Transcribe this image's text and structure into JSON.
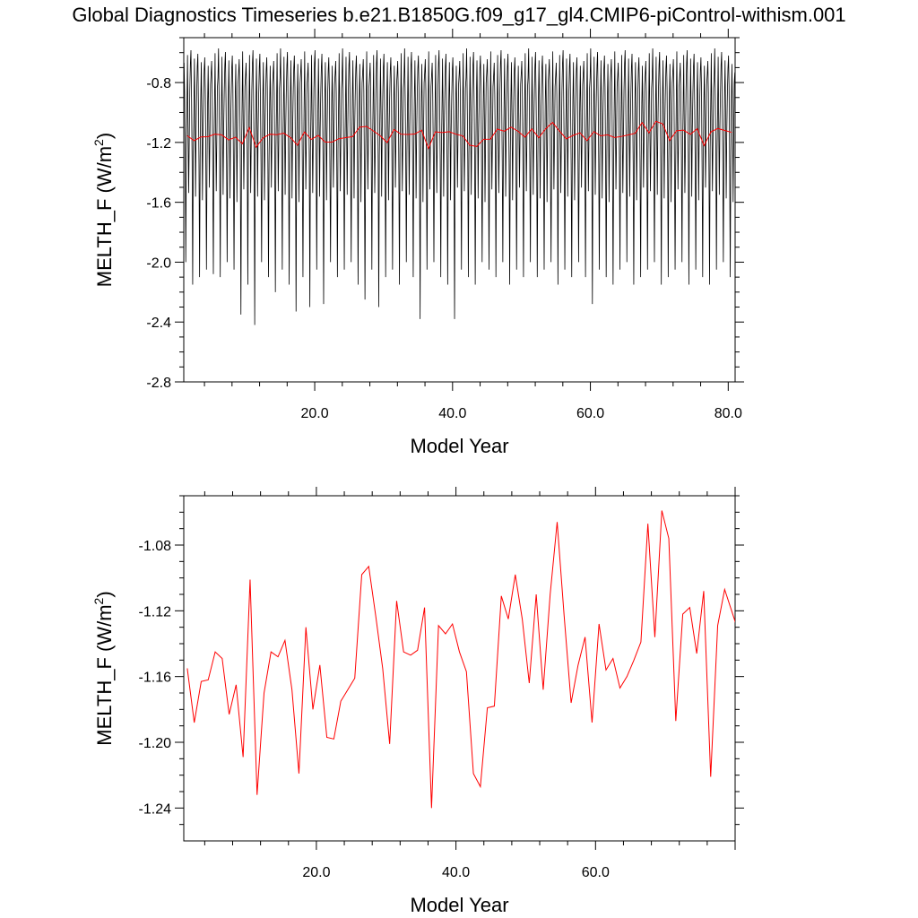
{
  "title": "Global Diagnostics Timeseries b.e21.B1850G.f09_g17_gl4.CMIP6-piControl-withism.001",
  "colors": {
    "monthly": "#000000",
    "annual": "#ff0000"
  },
  "chart_data": [
    {
      "type": "line",
      "xlabel": "Model Year",
      "ylabel": {
        "main": "MELTH_F (W/m",
        "sup": "2",
        "end": ")"
      },
      "xlim": [
        1,
        81
      ],
      "ylim": [
        -2.8,
        -0.5
      ],
      "xticks": [
        20,
        40,
        60,
        80
      ],
      "xtick_labels": [
        "20.0",
        "40.0",
        "60.0",
        "80.0"
      ],
      "yticks": [
        -0.8,
        -1.2,
        -1.6,
        -2.0,
        -2.4,
        -2.8
      ],
      "ytick_labels": [
        "-0.8",
        "-1.2",
        "-1.6",
        "-2.0",
        "-2.4",
        "-2.8"
      ],
      "grid": false,
      "monthly_pattern": [
        -0.62,
        -0.88,
        -1.35,
        -2.05,
        -1.3,
        -0.95,
        -0.64,
        -1.05,
        -1.55,
        -1.15,
        -0.85,
        -0.72
      ],
      "annual_minima": [
        -2.0,
        -2.15,
        -2.1,
        -2.05,
        -2.08,
        -2.1,
        -2.0,
        -2.05,
        -2.35,
        -2.15,
        -2.42,
        -2.0,
        -2.1,
        -2.2,
        -2.05,
        -2.15,
        -2.33,
        -2.1,
        -2.3,
        -2.05,
        -2.28,
        -2.0,
        -2.1,
        -2.05,
        -2.0,
        -2.15,
        -2.25,
        -2.05,
        -2.3,
        -2.1,
        -2.05,
        -2.15,
        -2.0,
        -2.1,
        -2.38,
        -2.05,
        -2.0,
        -2.1,
        -2.15,
        -2.38,
        -2.05,
        -2.1,
        -2.15,
        -2.0,
        -2.05,
        -2.1,
        -2.0,
        -2.15,
        -2.05,
        -2.1,
        -2.0,
        -2.1,
        -2.05,
        -2.0,
        -2.15,
        -2.05,
        -2.1,
        -2.0,
        -2.1,
        -2.28,
        -2.05,
        -2.1,
        -2.15,
        -2.05,
        -2.0,
        -2.15,
        -2.1,
        -2.05,
        -2.0,
        -2.15,
        -2.1,
        -2.05,
        -2.0,
        -2.15,
        -2.05,
        -2.1,
        -2.15,
        -2.05,
        -2.0,
        -2.1
      ],
      "series": [
        {
          "kind": "monthly"
        },
        {
          "kind": "annual",
          "ref": "annual"
        }
      ]
    },
    {
      "type": "line",
      "xlabel": "Model Year",
      "ylabel": {
        "main": "MELTH_F (W/m",
        "sup": "2",
        "end": ")"
      },
      "xlim": [
        1,
        80
      ],
      "ylim": [
        -1.26,
        -1.05
      ],
      "xticks": [
        20,
        40,
        60
      ],
      "xtick_labels": [
        "20.0",
        "40.0",
        "60.0"
      ],
      "yticks": [
        -1.08,
        -1.12,
        -1.16,
        -1.2,
        -1.24
      ],
      "ytick_labels": [
        "-1.08",
        "-1.12",
        "-1.16",
        "-1.20",
        "-1.24"
      ],
      "grid": false,
      "series": [
        {
          "kind": "annual",
          "ref": "annual"
        }
      ]
    }
  ],
  "annual": {
    "x": [
      1,
      2,
      3,
      4,
      5,
      6,
      7,
      8,
      9,
      10,
      11,
      12,
      13,
      14,
      15,
      16,
      17,
      18,
      19,
      20,
      21,
      22,
      23,
      24,
      25,
      26,
      27,
      28,
      29,
      30,
      31,
      32,
      33,
      34,
      35,
      36,
      37,
      38,
      39,
      40,
      41,
      42,
      43,
      44,
      45,
      46,
      47,
      48,
      49,
      50,
      51,
      52,
      53,
      54,
      55,
      56,
      57,
      58,
      59,
      60,
      61,
      62,
      63,
      64,
      65,
      66,
      67,
      68,
      69,
      70,
      71,
      72,
      73,
      74,
      75,
      76,
      77,
      78,
      79,
      80
    ],
    "y": [
      -1.155,
      -1.188,
      -1.163,
      -1.162,
      -1.145,
      -1.149,
      -1.183,
      -1.165,
      -1.209,
      -1.101,
      -1.232,
      -1.17,
      -1.145,
      -1.148,
      -1.138,
      -1.168,
      -1.219,
      -1.13,
      -1.18,
      -1.153,
      -1.197,
      -1.198,
      -1.175,
      -1.168,
      -1.161,
      -1.098,
      -1.093,
      -1.123,
      -1.155,
      -1.201,
      -1.114,
      -1.145,
      -1.147,
      -1.144,
      -1.118,
      -1.24,
      -1.129,
      -1.134,
      -1.128,
      -1.145,
      -1.157,
      -1.219,
      -1.227,
      -1.179,
      -1.178,
      -1.111,
      -1.125,
      -1.098,
      -1.125,
      -1.164,
      -1.11,
      -1.168,
      -1.11,
      -1.066,
      -1.123,
      -1.176,
      -1.153,
      -1.136,
      -1.188,
      -1.128,
      -1.156,
      -1.149,
      -1.167,
      -1.16,
      -1.15,
      -1.139,
      -1.067,
      -1.136,
      -1.059,
      -1.076,
      -1.187,
      -1.122,
      -1.118,
      -1.146,
      -1.108,
      -1.221,
      -1.129,
      -1.107,
      -1.12,
      -1.133
    ]
  }
}
